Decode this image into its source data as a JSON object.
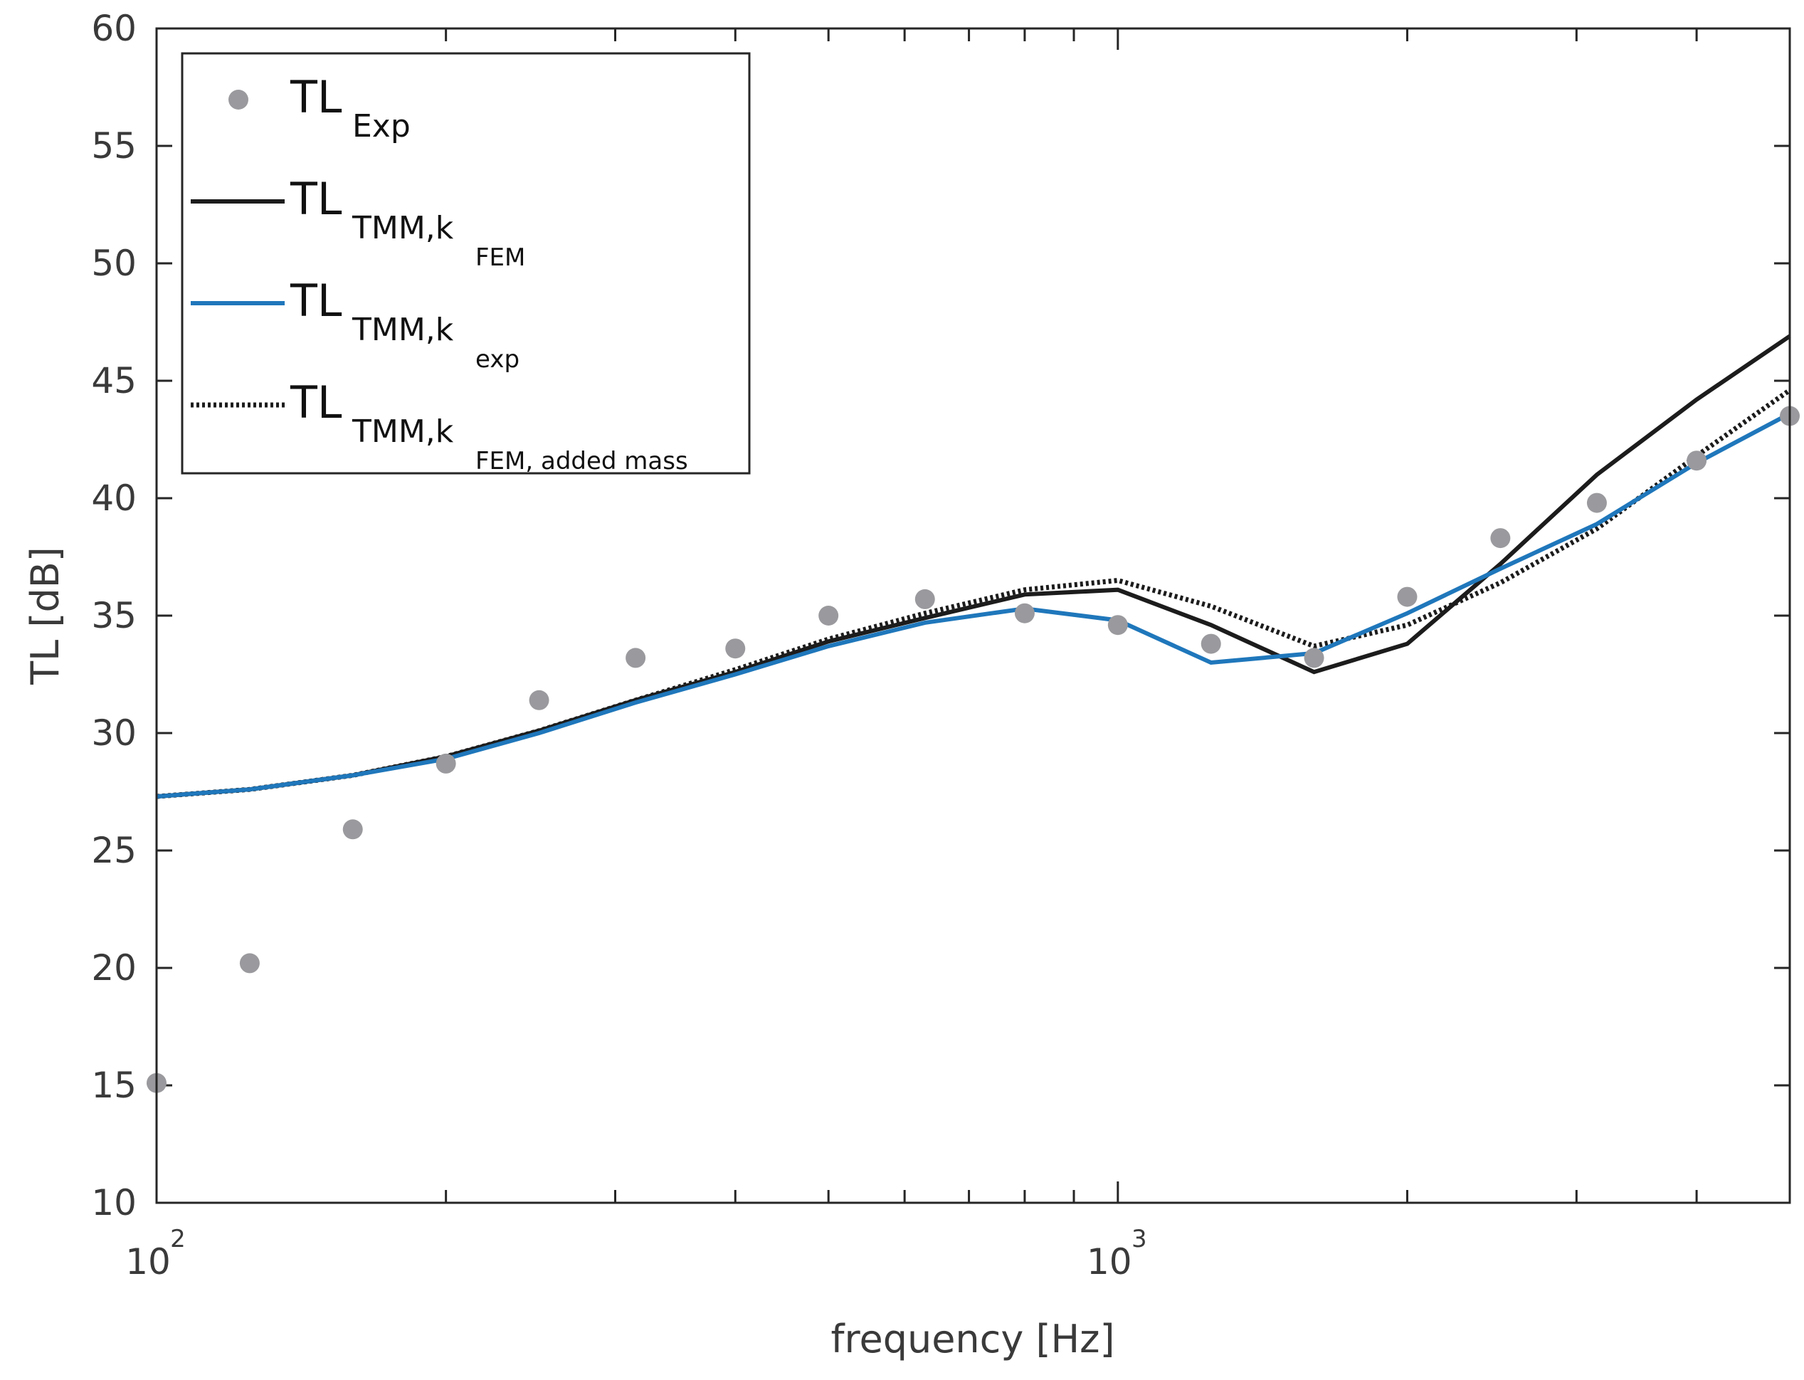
{
  "chart_data": {
    "type": "line",
    "title": "",
    "xlabel": "frequency [Hz]",
    "ylabel": "TL [dB]",
    "xscale": "log",
    "xlim": [
      100,
      5000
    ],
    "ylim": [
      10,
      60
    ],
    "yticks": [
      10,
      15,
      20,
      25,
      30,
      35,
      40,
      45,
      50,
      55,
      60
    ],
    "xticks": [
      {
        "base": "10",
        "exp": "2",
        "value": 100
      },
      {
        "base": "10",
        "exp": "3",
        "value": 1000
      }
    ],
    "grid": false,
    "legend_position": "top-left",
    "x": [
      100,
      125,
      160,
      200,
      250,
      315,
      400,
      500,
      630,
      800,
      1000,
      1250,
      1600,
      2000,
      2500,
      3150,
      4000,
      5000
    ],
    "series": [
      {
        "name": "TL Exp",
        "legend": {
          "main": "TL",
          "sub": "Exp",
          "subsub": ""
        },
        "style": "markers",
        "color": "#9a9a9e",
        "values": [
          15.1,
          20.2,
          25.9,
          28.7,
          31.4,
          33.2,
          33.6,
          35.0,
          35.7,
          35.1,
          34.6,
          33.8,
          33.2,
          35.8,
          38.3,
          39.8,
          41.6,
          43.5
        ]
      },
      {
        "name": "TL TMM,k FEM",
        "legend": {
          "main": "TL",
          "sub": "TMM,k",
          "subsub": "FEM"
        },
        "style": "solid",
        "color": "#1c1c1c",
        "values": [
          27.3,
          27.6,
          28.2,
          29.0,
          30.1,
          31.4,
          32.6,
          33.9,
          34.9,
          35.9,
          36.1,
          34.6,
          32.6,
          33.8,
          37.2,
          41.0,
          44.2,
          46.9
        ]
      },
      {
        "name": "TL TMM,k exp",
        "legend": {
          "main": "TL",
          "sub": "TMM,k",
          "subsub": "exp"
        },
        "style": "solid",
        "color": "#1f77bb",
        "values": [
          27.3,
          27.6,
          28.2,
          28.9,
          30.0,
          31.3,
          32.5,
          33.7,
          34.7,
          35.3,
          34.8,
          33.0,
          33.4,
          35.1,
          37.0,
          38.9,
          41.5,
          43.6
        ]
      },
      {
        "name": "TL TMM,k FEM, added mass",
        "legend": {
          "main": "TL",
          "sub": "TMM,k",
          "subsub": "FEM, added mass"
        },
        "style": "dotted",
        "color": "#1c1c1c",
        "values": [
          27.3,
          27.6,
          28.2,
          29.0,
          30.1,
          31.4,
          32.7,
          34.0,
          35.1,
          36.1,
          36.5,
          35.4,
          33.7,
          34.6,
          36.4,
          38.7,
          41.8,
          44.6
        ]
      }
    ]
  }
}
